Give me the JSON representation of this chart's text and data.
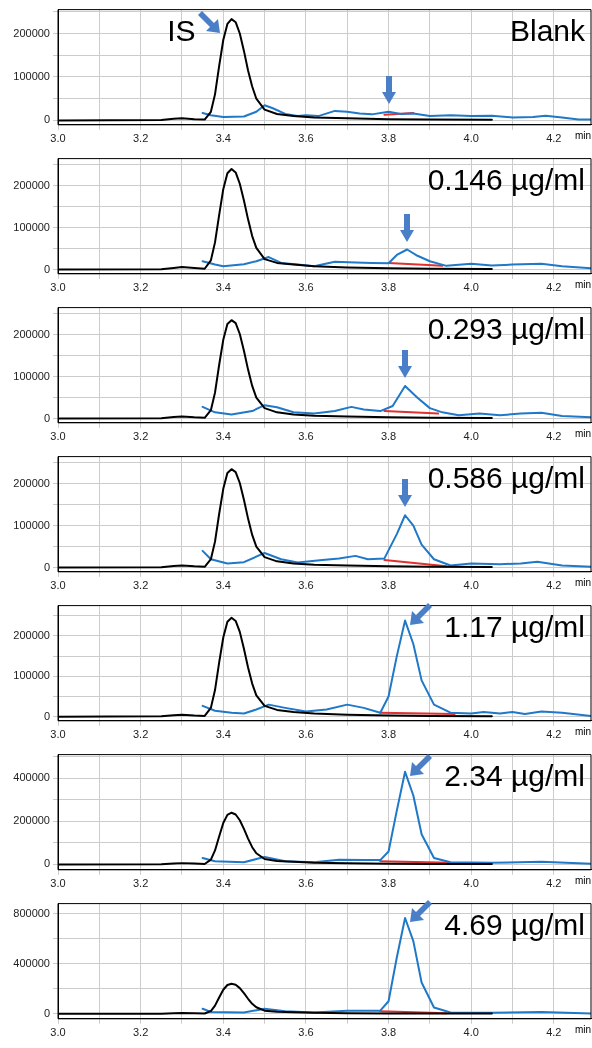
{
  "chart_data": [
    {
      "type": "line",
      "title": "Blank",
      "xlabel": "min",
      "xlim": [
        3.0,
        4.29
      ],
      "xticks": [
        {
          "value": 3,
          "label": "3.0"
        },
        {
          "value": 3.1,
          "label": null
        },
        3.2,
        {
          "value": 3.3,
          "label": null
        },
        3.4,
        {
          "value": 3.5,
          "label": null
        },
        3.6,
        {
          "value": 3.7,
          "label": null
        },
        3.8,
        {
          "value": 3.9,
          "label": null
        },
        {
          "value": 4,
          "label": "4.0"
        },
        {
          "value": 4.1,
          "label": null
        },
        4.2
      ],
      "ylim": [
        -10000,
        255000
      ],
      "yticks": [
        0,
        {
          "value": 50000,
          "label": null
        },
        100000,
        {
          "value": 150000,
          "label": null
        },
        200000,
        {
          "value": 250000,
          "label": null
        }
      ],
      "grid": true,
      "marker": "none",
      "annotations": [
        {
          "text": "IS",
          "x": 3.42,
          "y": 233000
        }
      ],
      "series": [
        {
          "color": "#000000",
          "x": [
            3.0,
            3.25,
            3.28,
            3.3,
            3.33,
            3.355,
            3.37,
            3.38,
            3.39,
            3.4,
            3.41,
            3.42,
            3.43,
            3.44,
            3.45,
            3.46,
            3.47,
            3.48,
            3.5,
            3.53,
            3.57,
            3.62,
            3.7,
            3.8,
            3.9,
            4.05
          ],
          "values": [
            0,
            1000,
            4000,
            5000,
            3000,
            2000,
            20000,
            60000,
            125000,
            185000,
            222000,
            233000,
            226000,
            200000,
            160000,
            115000,
            78000,
            50000,
            25000,
            15000,
            10000,
            7000,
            5000,
            2500,
            2000,
            1500
          ]
        },
        {
          "color": "#1f78c8",
          "x": [
            3.35,
            3.37,
            3.4,
            3.45,
            3.48,
            3.5,
            3.52,
            3.55,
            3.58,
            3.6,
            3.63,
            3.67,
            3.7,
            3.73,
            3.76,
            3.8,
            3.83,
            3.86,
            3.9,
            3.95,
            4.0,
            4.05,
            4.1,
            4.15,
            4.18,
            4.22,
            4.26,
            4.29
          ],
          "values": [
            17000,
            12000,
            8000,
            9000,
            20000,
            35000,
            28000,
            15000,
            10000,
            12000,
            10000,
            22000,
            20000,
            16000,
            14000,
            20000,
            15000,
            16000,
            10000,
            12000,
            10000,
            11000,
            7000,
            8000,
            11000,
            7000,
            2000,
            2000
          ]
        },
        {
          "color": "#e03030",
          "x": [
            3.79,
            3.86
          ],
          "values": [
            13000,
            17000
          ]
        }
      ]
    },
    {
      "type": "line",
      "title": "0.146 µg/ml",
      "xlabel": "min",
      "xlim": [
        3.0,
        4.29
      ],
      "xticks": [
        {
          "value": 3,
          "label": "3.0"
        },
        {
          "value": 3.1,
          "label": null
        },
        3.2,
        {
          "value": 3.3,
          "label": null
        },
        3.4,
        {
          "value": 3.5,
          "label": null
        },
        3.6,
        {
          "value": 3.7,
          "label": null
        },
        3.8,
        {
          "value": 3.9,
          "label": null
        },
        {
          "value": 4,
          "label": "4.0"
        },
        {
          "value": 4.1,
          "label": null
        },
        4.2
      ],
      "ylim": [
        -10000,
        265000
      ],
      "yticks": [
        0,
        {
          "value": 50000,
          "label": null
        },
        100000,
        {
          "value": 150000,
          "label": null
        },
        200000,
        {
          "value": 250000,
          "label": null
        }
      ],
      "grid": true,
      "marker": "none",
      "series": [
        {
          "color": "#000000",
          "x": [
            3.0,
            3.25,
            3.28,
            3.3,
            3.33,
            3.355,
            3.37,
            3.38,
            3.39,
            3.4,
            3.41,
            3.42,
            3.43,
            3.44,
            3.45,
            3.46,
            3.47,
            3.48,
            3.5,
            3.53,
            3.57,
            3.62,
            3.7,
            3.8,
            3.9,
            4.05
          ],
          "values": [
            0,
            1000,
            4000,
            6000,
            4000,
            2000,
            22000,
            65000,
            130000,
            192000,
            230000,
            240000,
            232000,
            205000,
            165000,
            120000,
            80000,
            52000,
            25000,
            16000,
            12000,
            8000,
            5000,
            3000,
            2000,
            1500
          ]
        },
        {
          "color": "#1f78c8",
          "x": [
            3.35,
            3.38,
            3.4,
            3.45,
            3.48,
            3.51,
            3.54,
            3.58,
            3.62,
            3.67,
            3.72,
            3.76,
            3.8,
            3.82,
            3.845,
            3.87,
            3.9,
            3.94,
            4.0,
            4.05,
            4.1,
            4.17,
            4.22,
            4.29
          ],
          "values": [
            20000,
            12000,
            8000,
            13000,
            20000,
            30000,
            16000,
            12000,
            8000,
            19000,
            17000,
            16000,
            15000,
            35000,
            48000,
            33000,
            20000,
            9000,
            14000,
            10000,
            12000,
            14000,
            8000,
            3000
          ]
        },
        {
          "color": "#e03030",
          "x": [
            3.8,
            3.93
          ],
          "values": [
            16000,
            9000
          ]
        }
      ]
    },
    {
      "type": "line",
      "title": "0.293 µg/ml",
      "xlabel": "min",
      "xlim": [
        3.0,
        4.29
      ],
      "xticks": [
        {
          "value": 3,
          "label": "3.0"
        },
        {
          "value": 3.1,
          "label": null
        },
        3.2,
        {
          "value": 3.3,
          "label": null
        },
        3.4,
        {
          "value": 3.5,
          "label": null
        },
        3.6,
        {
          "value": 3.7,
          "label": null
        },
        3.8,
        {
          "value": 3.9,
          "label": null
        },
        {
          "value": 4,
          "label": "4.0"
        },
        {
          "value": 4.1,
          "label": null
        },
        4.2
      ],
      "ylim": [
        -10000,
        265000
      ],
      "yticks": [
        0,
        {
          "value": 50000,
          "label": null
        },
        100000,
        {
          "value": 150000,
          "label": null
        },
        200000,
        {
          "value": 250000,
          "label": null
        }
      ],
      "grid": true,
      "marker": "none",
      "series": [
        {
          "color": "#000000",
          "x": [
            3.0,
            3.25,
            3.28,
            3.3,
            3.33,
            3.355,
            3.37,
            3.38,
            3.39,
            3.4,
            3.41,
            3.42,
            3.43,
            3.44,
            3.45,
            3.46,
            3.47,
            3.48,
            3.5,
            3.53,
            3.57,
            3.62,
            3.7,
            3.8,
            3.9,
            4.05
          ],
          "values": [
            0,
            1000,
            4000,
            5000,
            3000,
            2000,
            20000,
            62000,
            128000,
            188000,
            226000,
            235000,
            228000,
            202000,
            162000,
            117000,
            78000,
            50000,
            25000,
            15000,
            10000,
            7000,
            5000,
            3000,
            2000,
            1500
          ]
        },
        {
          "color": "#1f78c8",
          "x": [
            3.35,
            3.38,
            3.42,
            3.47,
            3.5,
            3.53,
            3.57,
            3.62,
            3.67,
            3.71,
            3.74,
            3.78,
            3.81,
            3.84,
            3.87,
            3.9,
            3.93,
            3.97,
            4.02,
            4.07,
            4.12,
            4.17,
            4.22,
            4.29
          ],
          "values": [
            28000,
            15000,
            10000,
            18000,
            32000,
            27000,
            15000,
            12000,
            18000,
            28000,
            22000,
            18000,
            30000,
            78000,
            50000,
            25000,
            15000,
            8000,
            12000,
            8000,
            12000,
            14000,
            6000,
            3000
          ]
        },
        {
          "color": "#e03030",
          "x": [
            3.79,
            3.92
          ],
          "values": [
            18000,
            12000
          ]
        }
      ]
    },
    {
      "type": "line",
      "title": "0.586 µg/ml",
      "xlabel": "min",
      "xlim": [
        3.0,
        4.29
      ],
      "xticks": [
        {
          "value": 3,
          "label": "3.0"
        },
        {
          "value": 3.1,
          "label": null
        },
        3.2,
        {
          "value": 3.3,
          "label": null
        },
        3.4,
        {
          "value": 3.5,
          "label": null
        },
        3.6,
        {
          "value": 3.7,
          "label": null
        },
        3.8,
        {
          "value": 3.9,
          "label": null
        },
        {
          "value": 4,
          "label": "4.0"
        },
        {
          "value": 4.1,
          "label": null
        },
        4.2
      ],
      "ylim": [
        -10000,
        265000
      ],
      "yticks": [
        0,
        {
          "value": 50000,
          "label": null
        },
        100000,
        {
          "value": 150000,
          "label": null
        },
        200000,
        {
          "value": 250000,
          "label": null
        }
      ],
      "grid": true,
      "marker": "none",
      "series": [
        {
          "color": "#000000",
          "x": [
            3.0,
            3.25,
            3.28,
            3.3,
            3.33,
            3.355,
            3.37,
            3.38,
            3.39,
            3.4,
            3.41,
            3.42,
            3.43,
            3.44,
            3.45,
            3.46,
            3.47,
            3.48,
            3.5,
            3.53,
            3.57,
            3.62,
            3.7,
            3.8,
            3.9,
            4.05
          ],
          "values": [
            0,
            1000,
            4000,
            5000,
            3000,
            2000,
            20000,
            62000,
            128000,
            188000,
            226000,
            235000,
            228000,
            202000,
            162000,
            117000,
            78000,
            50000,
            25000,
            15000,
            10000,
            7000,
            5000,
            3000,
            2000,
            1500
          ]
        },
        {
          "color": "#1f78c8",
          "x": [
            3.35,
            3.37,
            3.41,
            3.45,
            3.5,
            3.54,
            3.58,
            3.64,
            3.68,
            3.72,
            3.75,
            3.79,
            3.82,
            3.84,
            3.86,
            3.88,
            3.91,
            3.95,
            4.0,
            4.07,
            4.12,
            4.16,
            4.22,
            4.29
          ],
          "values": [
            40000,
            20000,
            10000,
            13000,
            35000,
            20000,
            12000,
            18000,
            22000,
            28000,
            20000,
            22000,
            80000,
            125000,
            100000,
            55000,
            20000,
            5000,
            10000,
            8000,
            10000,
            14000,
            5000,
            2000
          ]
        },
        {
          "color": "#e03030",
          "x": [
            3.79,
            3.94
          ],
          "values": [
            18000,
            3000
          ]
        }
      ]
    },
    {
      "type": "line",
      "title": "1.17 µg/ml",
      "xlabel": "min",
      "xlim": [
        3.0,
        4.29
      ],
      "xticks": [
        {
          "value": 3,
          "label": "3.0"
        },
        {
          "value": 3.1,
          "label": null
        },
        3.2,
        {
          "value": 3.3,
          "label": null
        },
        3.4,
        {
          "value": 3.5,
          "label": null
        },
        3.6,
        {
          "value": 3.7,
          "label": null
        },
        3.8,
        {
          "value": 3.9,
          "label": null
        },
        {
          "value": 4,
          "label": "4.0"
        },
        {
          "value": 4.1,
          "label": null
        },
        4.2
      ],
      "ylim": [
        -10000,
        275000
      ],
      "yticks": [
        0,
        {
          "value": 50000,
          "label": null
        },
        100000,
        {
          "value": 150000,
          "label": null
        },
        200000,
        {
          "value": 250000,
          "label": null
        }
      ],
      "grid": true,
      "marker": "none",
      "series": [
        {
          "color": "#000000",
          "x": [
            3.0,
            3.25,
            3.28,
            3.3,
            3.33,
            3.355,
            3.37,
            3.38,
            3.39,
            3.4,
            3.41,
            3.42,
            3.43,
            3.44,
            3.45,
            3.46,
            3.47,
            3.48,
            3.5,
            3.53,
            3.57,
            3.62,
            3.7,
            3.8,
            3.9,
            4.05
          ],
          "values": [
            0,
            1000,
            4000,
            5000,
            3000,
            2000,
            22000,
            66000,
            134000,
            196000,
            235000,
            245000,
            237000,
            210000,
            168000,
            122000,
            82000,
            53000,
            27000,
            17000,
            12000,
            8000,
            5000,
            3000,
            2000,
            1500
          ]
        },
        {
          "color": "#1f78c8",
          "x": [
            3.35,
            3.38,
            3.42,
            3.45,
            3.48,
            3.51,
            3.55,
            3.6,
            3.65,
            3.7,
            3.74,
            3.78,
            3.8,
            3.82,
            3.84,
            3.86,
            3.88,
            3.91,
            3.95,
            4.0,
            4.03,
            4.07,
            4.1,
            4.13,
            4.17,
            4.22,
            4.29
          ],
          "values": [
            27000,
            15000,
            10000,
            8000,
            18000,
            30000,
            22000,
            13000,
            18000,
            30000,
            22000,
            10000,
            50000,
            150000,
            238000,
            180000,
            90000,
            30000,
            10000,
            8000,
            12000,
            8000,
            12000,
            7000,
            13000,
            10000,
            2000
          ]
        },
        {
          "color": "#e03030",
          "x": [
            3.78,
            3.96
          ],
          "values": [
            10000,
            7000
          ]
        }
      ]
    },
    {
      "type": "line",
      "title": "2.34 µg/ml",
      "xlabel": "min",
      "xlim": [
        3.0,
        4.29
      ],
      "xticks": [
        {
          "value": 3,
          "label": "3.0"
        },
        {
          "value": 3.1,
          "label": null
        },
        3.2,
        {
          "value": 3.3,
          "label": null
        },
        3.4,
        {
          "value": 3.5,
          "label": null
        },
        3.6,
        {
          "value": 3.7,
          "label": null
        },
        3.8,
        {
          "value": 3.9,
          "label": null
        },
        {
          "value": 4,
          "label": "4.0"
        },
        {
          "value": 4.1,
          "label": null
        },
        4.2
      ],
      "ylim": [
        -25000,
        510000
      ],
      "yticks": [
        0,
        {
          "value": 100000,
          "label": null
        },
        200000,
        {
          "value": 300000,
          "label": null
        },
        400000,
        {
          "value": 500000,
          "label": null
        }
      ],
      "grid": true,
      "marker": "none",
      "series": [
        {
          "color": "#000000",
          "x": [
            3.0,
            3.25,
            3.28,
            3.3,
            3.33,
            3.355,
            3.37,
            3.38,
            3.39,
            3.4,
            3.41,
            3.42,
            3.43,
            3.44,
            3.45,
            3.46,
            3.47,
            3.48,
            3.5,
            3.53,
            3.57,
            3.62,
            3.7,
            3.8,
            3.9,
            4.05
          ],
          "values": [
            0,
            1000,
            4000,
            6000,
            4000,
            2000,
            22000,
            65000,
            130000,
            192000,
            230000,
            240000,
            232000,
            205000,
            165000,
            120000,
            80000,
            52000,
            25000,
            16000,
            12000,
            8000,
            5000,
            3000,
            2000,
            1500
          ]
        },
        {
          "color": "#1f78c8",
          "x": [
            3.35,
            3.38,
            3.45,
            3.5,
            3.55,
            3.62,
            3.68,
            3.74,
            3.78,
            3.8,
            3.82,
            3.84,
            3.86,
            3.88,
            3.91,
            3.95,
            4.05,
            4.17,
            4.29
          ],
          "values": [
            30000,
            15000,
            10000,
            35000,
            15000,
            10000,
            22000,
            20000,
            20000,
            60000,
            250000,
            430000,
            320000,
            140000,
            30000,
            10000,
            8000,
            12000,
            3000
          ]
        },
        {
          "color": "#e03030",
          "x": [
            3.78,
            3.95
          ],
          "values": [
            15000,
            8000
          ]
        }
      ]
    },
    {
      "type": "line",
      "title": "4.69 µg/ml",
      "xlabel": "min",
      "xlim": [
        3.0,
        4.29
      ],
      "xticks": [
        {
          "value": 3,
          "label": "3.0"
        },
        {
          "value": 3.1,
          "label": null
        },
        3.2,
        {
          "value": 3.3,
          "label": null
        },
        3.4,
        {
          "value": 3.5,
          "label": null
        },
        3.6,
        {
          "value": 3.7,
          "label": null
        },
        3.8,
        {
          "value": 3.9,
          "label": null
        },
        {
          "value": 4,
          "label": "4.0"
        },
        {
          "value": 4.1,
          "label": null
        },
        4.2
      ],
      "ylim": [
        -40000,
        880000
      ],
      "yticks": [
        0,
        {
          "value": 200000,
          "label": null
        },
        400000,
        {
          "value": 600000,
          "label": null
        },
        800000
      ],
      "grid": true,
      "marker": "none",
      "series": [
        {
          "color": "#000000",
          "x": [
            3.0,
            3.25,
            3.28,
            3.3,
            3.33,
            3.355,
            3.37,
            3.38,
            3.39,
            3.4,
            3.41,
            3.42,
            3.43,
            3.44,
            3.45,
            3.46,
            3.47,
            3.48,
            3.5,
            3.53,
            3.57,
            3.62,
            3.7,
            3.8,
            3.9,
            4.05
          ],
          "values": [
            0,
            1000,
            4000,
            6000,
            4000,
            2000,
            22000,
            65000,
            130000,
            192000,
            230000,
            240000,
            232000,
            205000,
            165000,
            120000,
            80000,
            52000,
            25000,
            16000,
            12000,
            8000,
            5000,
            3000,
            2000,
            1500
          ]
        },
        {
          "color": "#1f78c8",
          "x": [
            3.35,
            3.37,
            3.45,
            3.5,
            3.55,
            3.62,
            3.7,
            3.74,
            3.78,
            3.8,
            3.82,
            3.84,
            3.86,
            3.88,
            3.91,
            3.95,
            4.05,
            4.17,
            4.29
          ],
          "values": [
            40000,
            15000,
            10000,
            40000,
            20000,
            10000,
            25000,
            25000,
            25000,
            100000,
            450000,
            765000,
            580000,
            250000,
            50000,
            10000,
            8000,
            15000,
            3000
          ]
        },
        {
          "color": "#e03030",
          "x": [
            3.78,
            3.94
          ],
          "values": [
            20000,
            5000
          ]
        }
      ]
    }
  ]
}
